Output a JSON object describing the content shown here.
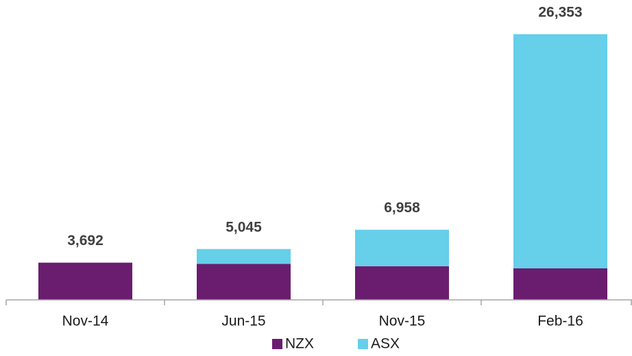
{
  "chart_data": {
    "type": "stacked_bar",
    "categories": [
      "Nov-14",
      "Jun-15",
      "Nov-15",
      "Feb-16"
    ],
    "series": [
      {
        "name": "NZX",
        "color": "#6a1d6f",
        "values": [
          3692,
          3574,
          3340,
          3124
        ]
      },
      {
        "name": "ASX",
        "color": "#66cfea",
        "values": [
          0,
          1471,
          3618,
          23229
        ]
      }
    ],
    "totals": [
      3692,
      5045,
      6958,
      26353
    ],
    "total_labels": [
      "3,692",
      "5,045",
      "6,958",
      "26,353"
    ],
    "ylim": [
      0,
      29750
    ],
    "legend": "bottom"
  }
}
